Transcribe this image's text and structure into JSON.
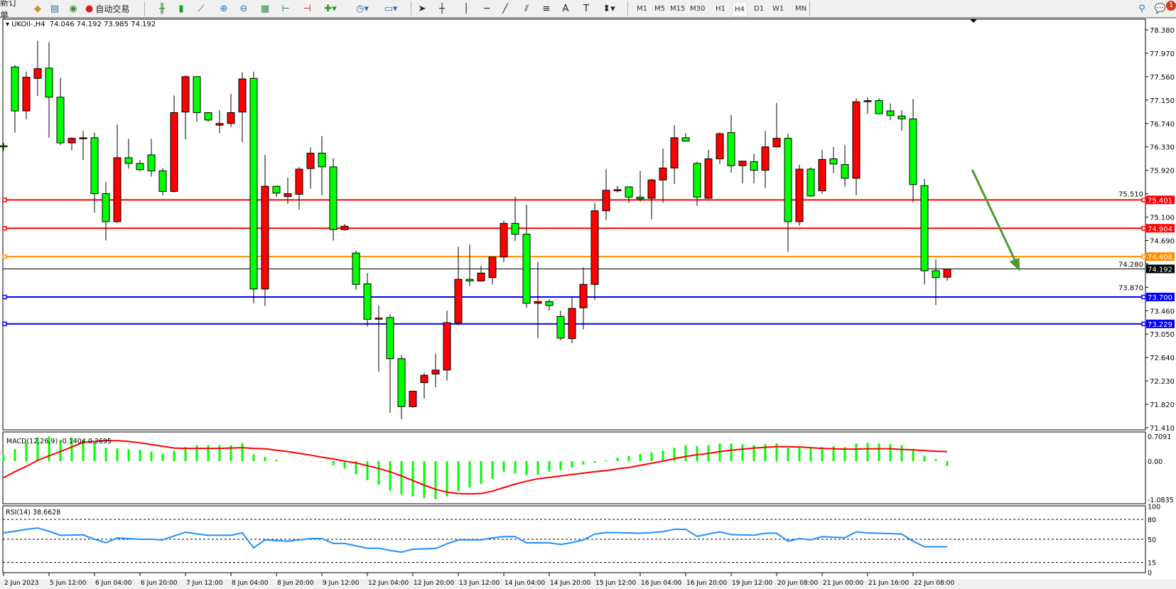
{
  "toolbar": {
    "new_order": "新订单",
    "auto_trading": "自动交易",
    "timeframes": [
      "M1",
      "M5",
      "M15",
      "M30",
      "H1",
      "H4",
      "D1",
      "W1",
      "MN"
    ],
    "active_timeframe": "H4",
    "notification_count": "1"
  },
  "chart_data": {
    "type": "candlestick",
    "symbol_label": "UKOil-,H4",
    "ohlc_label": "74.046 74.192 73.985 74.192",
    "colors": {
      "up": "#ff0000",
      "down": "#00ff00",
      "wick": "#000000"
    },
    "price_axis": {
      "range": [
        71.41,
        78.38
      ],
      "ticks": [
        "78.380",
        "77.970",
        "77.560",
        "77.150",
        "76.740",
        "76.330",
        "75.920",
        "75.510",
        "75.100",
        "74.690",
        "74.280",
        "73.870",
        "73.460",
        "73.050",
        "72.640",
        "72.230",
        "71.820",
        "71.410"
      ]
    },
    "time_axis": {
      "labels": [
        "2 Jun 2023",
        "5 Jun 12:00",
        "6 Jun 04:00",
        "6 Jun 20:00",
        "7 Jun 12:00",
        "8 Jun 04:00",
        "8 Jun 20:00",
        "9 Jun 12:00",
        "12 Jun 04:00",
        "12 Jun 20:00",
        "13 Jun 12:00",
        "14 Jun 04:00",
        "14 Jun 20:00",
        "15 Jun 12:00",
        "16 Jun 04:00",
        "16 Jun 20:00",
        "19 Jun 12:00",
        "20 Jun 08:00",
        "21 Jun 00:00",
        "21 Jun 16:00",
        "22 Jun 08:00"
      ],
      "bars_per_label": 4
    },
    "candles_ohlc": [
      [
        76.35,
        76.4,
        76.26,
        76.33
      ],
      [
        77.73,
        77.76,
        76.58,
        76.96
      ],
      [
        76.96,
        77.65,
        76.81,
        77.55
      ],
      [
        77.53,
        78.19,
        77.22,
        77.7
      ],
      [
        77.71,
        78.16,
        76.49,
        77.2
      ],
      [
        77.2,
        77.54,
        76.36,
        76.4
      ],
      [
        76.4,
        76.5,
        76.27,
        76.48
      ],
      [
        76.48,
        76.61,
        76.1,
        76.49
      ],
      [
        76.49,
        76.58,
        75.18,
        75.51
      ],
      [
        75.51,
        75.71,
        74.69,
        75.02
      ],
      [
        75.02,
        76.72,
        75.0,
        76.14
      ],
      [
        76.14,
        76.47,
        75.95,
        76.04
      ],
      [
        76.04,
        76.1,
        75.9,
        75.93
      ],
      [
        76.19,
        76.47,
        75.81,
        75.91
      ],
      [
        75.91,
        75.96,
        75.48,
        75.55
      ],
      [
        75.55,
        77.23,
        75.53,
        76.93
      ],
      [
        76.94,
        77.58,
        76.46,
        77.56
      ],
      [
        77.56,
        77.56,
        76.77,
        76.93
      ],
      [
        76.93,
        76.94,
        76.77,
        76.8
      ],
      [
        76.71,
        76.97,
        76.57,
        76.74
      ],
      [
        76.74,
        77.26,
        76.68,
        76.93
      ],
      [
        76.94,
        77.64,
        76.41,
        77.52
      ],
      [
        77.53,
        77.65,
        73.59,
        73.84
      ],
      [
        73.84,
        76.19,
        73.54,
        75.64
      ],
      [
        75.64,
        75.64,
        75.45,
        75.52
      ],
      [
        75.46,
        75.79,
        75.33,
        75.51
      ],
      [
        75.5,
        75.98,
        75.23,
        75.94
      ],
      [
        75.95,
        76.32,
        75.6,
        76.22
      ],
      [
        76.22,
        76.52,
        75.48,
        75.98
      ],
      [
        75.98,
        76.13,
        74.69,
        74.88
      ],
      [
        74.88,
        74.98,
        74.86,
        74.94
      ],
      [
        74.47,
        74.51,
        73.83,
        73.92
      ],
      [
        73.93,
        74.12,
        73.18,
        73.31
      ],
      [
        73.32,
        73.55,
        72.39,
        73.33
      ],
      [
        73.34,
        73.4,
        71.67,
        72.62
      ],
      [
        72.62,
        72.68,
        71.56,
        71.78
      ],
      [
        71.78,
        72.06,
        71.76,
        72.05
      ],
      [
        72.2,
        72.37,
        71.92,
        72.33
      ],
      [
        72.35,
        72.71,
        72.12,
        72.42
      ],
      [
        72.42,
        73.46,
        72.24,
        73.25
      ],
      [
        73.25,
        74.58,
        73.2,
        74.01
      ],
      [
        74.01,
        74.62,
        73.89,
        73.98
      ],
      [
        73.98,
        74.25,
        73.97,
        74.12
      ],
      [
        74.04,
        74.4,
        73.92,
        74.4
      ],
      [
        74.4,
        75.04,
        74.31,
        74.99
      ],
      [
        74.99,
        75.46,
        74.68,
        74.8
      ],
      [
        74.8,
        75.32,
        73.51,
        73.59
      ],
      [
        73.59,
        74.31,
        72.98,
        73.62
      ],
      [
        73.62,
        73.66,
        73.46,
        73.55
      ],
      [
        73.36,
        73.46,
        72.94,
        72.98
      ],
      [
        72.97,
        73.7,
        72.89,
        73.5
      ],
      [
        73.51,
        74.22,
        73.13,
        73.92
      ],
      [
        73.92,
        75.35,
        73.65,
        75.21
      ],
      [
        75.21,
        75.94,
        75.05,
        75.57
      ],
      [
        75.56,
        75.65,
        75.53,
        75.58
      ],
      [
        75.63,
        75.63,
        75.35,
        75.45
      ],
      [
        75.45,
        75.91,
        75.37,
        75.42
      ],
      [
        75.43,
        75.77,
        75.06,
        75.75
      ],
      [
        75.75,
        76.3,
        75.35,
        75.96
      ],
      [
        75.96,
        76.71,
        75.68,
        76.49
      ],
      [
        76.49,
        76.57,
        76.43,
        76.43
      ],
      [
        76.04,
        76.07,
        75.3,
        75.45
      ],
      [
        75.43,
        76.28,
        75.42,
        76.12
      ],
      [
        76.12,
        76.59,
        76.03,
        76.56
      ],
      [
        76.58,
        76.89,
        75.88,
        76.0
      ],
      [
        76.0,
        76.08,
        75.69,
        76.08
      ],
      [
        76.07,
        76.21,
        75.69,
        75.92
      ],
      [
        75.92,
        76.61,
        75.61,
        76.33
      ],
      [
        76.33,
        77.1,
        76.32,
        76.48
      ],
      [
        76.48,
        76.56,
        74.49,
        75.02
      ],
      [
        75.02,
        76.02,
        74.95,
        75.94
      ],
      [
        75.94,
        75.97,
        75.45,
        75.47
      ],
      [
        75.56,
        76.27,
        75.51,
        76.11
      ],
      [
        76.12,
        76.33,
        75.87,
        76.03
      ],
      [
        76.02,
        76.36,
        75.63,
        75.78
      ],
      [
        75.78,
        77.18,
        75.48,
        77.12
      ],
      [
        77.12,
        77.2,
        76.91,
        77.14
      ],
      [
        77.14,
        77.18,
        76.9,
        76.91
      ],
      [
        76.96,
        77.09,
        76.8,
        76.88
      ],
      [
        76.87,
        76.97,
        76.61,
        76.82
      ],
      [
        76.82,
        77.17,
        75.36,
        75.67
      ],
      [
        75.65,
        75.77,
        73.92,
        74.16
      ],
      [
        74.16,
        74.36,
        73.56,
        74.04
      ],
      [
        74.046,
        74.192,
        73.985,
        74.192
      ]
    ],
    "horizontal_lines": [
      {
        "price": "75.401",
        "color": "#ff0000"
      },
      {
        "price": "74.904",
        "color": "#ff0000"
      },
      {
        "price": "74.408",
        "color": "#ff8c00"
      },
      {
        "price": "73.700",
        "color": "#0000ff"
      },
      {
        "price": "73.229",
        "color": "#0000ff"
      }
    ],
    "current_price": {
      "price": "74.192",
      "color": "#000000"
    },
    "annotation_arrow": {
      "color": "#4a9a2e",
      "from": {
        "bar": 85.2,
        "price": 75.93
      },
      "to": {
        "bar": 89.4,
        "price": 74.15
      }
    },
    "macd": {
      "label": "MACD(12,26,9) -0.1404 0.2695",
      "range": [
        -1.0835,
        0.7091
      ],
      "tick_labels": [
        "0.7091",
        "0.00",
        "-1.0835"
      ],
      "histogram_color": "#00ff00",
      "signal_color": "#ff0000",
      "histogram": [
        0.17,
        0.34,
        0.52,
        0.68,
        0.7,
        0.6,
        0.67,
        0.6,
        0.52,
        0.38,
        0.36,
        0.34,
        0.32,
        0.27,
        0.21,
        0.29,
        0.4,
        0.45,
        0.45,
        0.45,
        0.45,
        0.51,
        0.19,
        0.12,
        0.04,
        0.0,
        -0.01,
        -0.01,
        -0.01,
        -0.12,
        -0.21,
        -0.37,
        -0.54,
        -0.67,
        -0.84,
        -0.95,
        -1.0,
        -1.05,
        -1.08,
        -1.0,
        -0.85,
        -0.75,
        -0.65,
        -0.5,
        -0.3,
        -0.35,
        -0.4,
        -0.38,
        -0.3,
        -0.25,
        -0.18,
        -0.1,
        -0.05,
        0.02,
        0.1,
        0.15,
        0.2,
        0.25,
        0.3,
        0.38,
        0.45,
        0.42,
        0.45,
        0.5,
        0.5,
        0.48,
        0.45,
        0.48,
        0.5,
        0.38,
        0.4,
        0.38,
        0.4,
        0.42,
        0.4,
        0.5,
        0.52,
        0.5,
        0.48,
        0.45,
        0.35,
        0.15,
        0.05,
        -0.1404
      ],
      "signal": [
        -0.47,
        -0.3,
        -0.15,
        0.02,
        0.15,
        0.27,
        0.4,
        0.53,
        0.56,
        0.58,
        0.58,
        0.56,
        0.52,
        0.47,
        0.42,
        0.37,
        0.36,
        0.36,
        0.36,
        0.36,
        0.37,
        0.38,
        0.36,
        0.35,
        0.31,
        0.27,
        0.22,
        0.17,
        0.11,
        0.06,
        0.0,
        -0.05,
        -0.13,
        -0.21,
        -0.3,
        -0.42,
        -0.55,
        -0.68,
        -0.8,
        -0.88,
        -0.92,
        -0.93,
        -0.92,
        -0.85,
        -0.75,
        -0.65,
        -0.57,
        -0.5,
        -0.46,
        -0.42,
        -0.38,
        -0.34,
        -0.3,
        -0.27,
        -0.22,
        -0.18,
        -0.12,
        -0.06,
        0.0,
        0.07,
        0.13,
        0.18,
        0.22,
        0.27,
        0.31,
        0.34,
        0.37,
        0.39,
        0.41,
        0.41,
        0.4,
        0.38,
        0.36,
        0.35,
        0.34,
        0.34,
        0.35,
        0.35,
        0.35,
        0.33,
        0.32,
        0.3,
        0.28,
        0.2695
      ]
    },
    "rsi": {
      "label": "RSI(14) 38.6628",
      "range": [
        0,
        100
      ],
      "tick_labels": [
        "100",
        "80",
        "50",
        "15",
        "0"
      ],
      "levels": [
        80,
        50,
        15
      ],
      "color": "#1e90ff",
      "values": [
        59.6,
        62,
        65,
        67,
        62,
        56,
        56.3,
        56.6,
        50,
        44.6,
        52,
        51,
        50,
        50,
        49,
        55,
        60.7,
        58,
        56,
        56,
        56,
        59.6,
        37,
        49,
        48,
        47,
        49,
        51,
        51,
        43.6,
        43.6,
        40,
        36.4,
        36.4,
        33,
        30.6,
        35,
        35.5,
        36,
        43,
        49,
        49,
        49,
        52,
        54,
        54,
        44.6,
        44.6,
        44.6,
        42,
        45,
        49,
        57.8,
        60,
        60,
        59.5,
        59,
        60,
        61.5,
        65,
        65,
        54.3,
        58,
        61,
        57,
        56.5,
        56,
        59,
        59,
        47,
        51,
        49,
        54,
        53,
        52.4,
        61,
        59.5,
        59,
        58.5,
        57.8,
        47,
        38.7,
        38.7,
        38.6628
      ]
    }
  }
}
